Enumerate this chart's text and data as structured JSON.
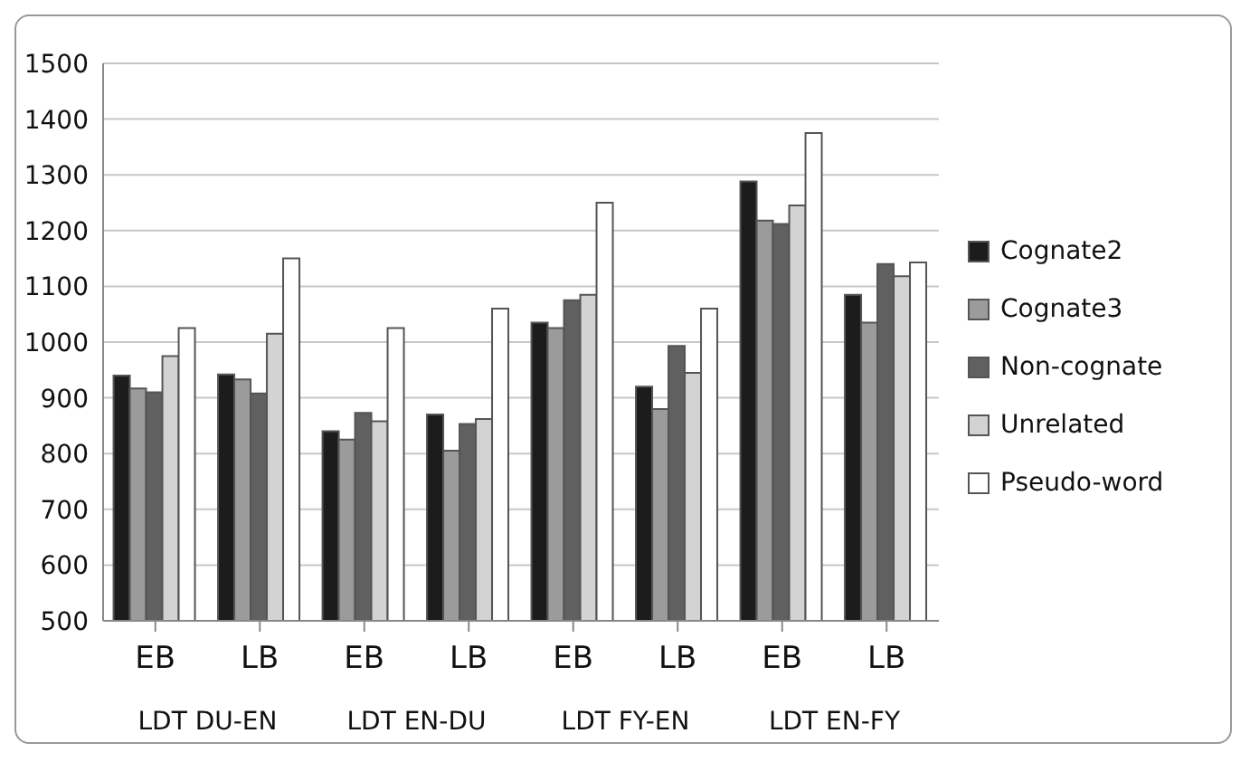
{
  "chart_data": {
    "type": "bar",
    "categories": [
      "EB",
      "LB",
      "EB",
      "LB",
      "EB",
      "LB",
      "EB",
      "LB"
    ],
    "series": [
      {
        "name": "Cognate2",
        "color": "#1c1c1c",
        "values": [
          940,
          942,
          840,
          870,
          1035,
          920,
          1288,
          1085
        ]
      },
      {
        "name": "Cognate3",
        "color": "#9b9b9b",
        "values": [
          917,
          933,
          825,
          805,
          1025,
          880,
          1218,
          1035
        ]
      },
      {
        "name": "Non-cognate",
        "color": "#606060",
        "values": [
          910,
          908,
          873,
          853,
          1075,
          993,
          1212,
          1140
        ]
      },
      {
        "name": "Unrelated",
        "color": "#d3d3d3",
        "values": [
          975,
          1015,
          858,
          862,
          1085,
          945,
          1245,
          1118
        ]
      },
      {
        "name": "Pseudo-word",
        "color": "#ffffff",
        "values": [
          1025,
          1150,
          1025,
          1060,
          1250,
          1060,
          1375,
          1143
        ]
      }
    ],
    "ylim": [
      500,
      1500
    ],
    "yticks": [
      500,
      600,
      700,
      800,
      900,
      1000,
      1100,
      1200,
      1300,
      1400,
      1500
    ],
    "grid": "y",
    "legend": "right",
    "annotations": [
      "LDT DU-EN",
      "LDT EN-DU",
      "LDT FY-EN",
      "LDT EN-FY"
    ]
  }
}
